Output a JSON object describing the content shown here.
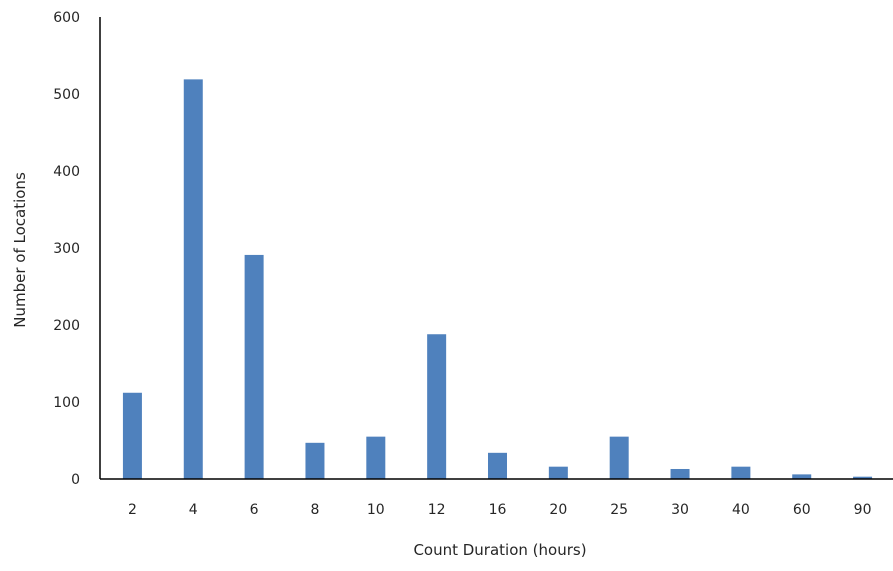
{
  "chart_data": {
    "type": "bar",
    "title": "",
    "xlabel": "Count Duration (hours)",
    "ylabel": "Number  of Locations",
    "categories": [
      "2",
      "4",
      "6",
      "8",
      "10",
      "12",
      "16",
      "20",
      "25",
      "30",
      "40",
      "60",
      "90"
    ],
    "values": [
      112,
      519,
      291,
      47,
      55,
      188,
      34,
      16,
      55,
      13,
      16,
      6,
      3
    ],
    "ylim": [
      0,
      600
    ],
    "yticks": [
      0,
      100,
      200,
      300,
      400,
      500,
      600
    ],
    "grid": false,
    "legend": "none",
    "bar_color": "#4f81bd",
    "axis_color": "#000000"
  }
}
